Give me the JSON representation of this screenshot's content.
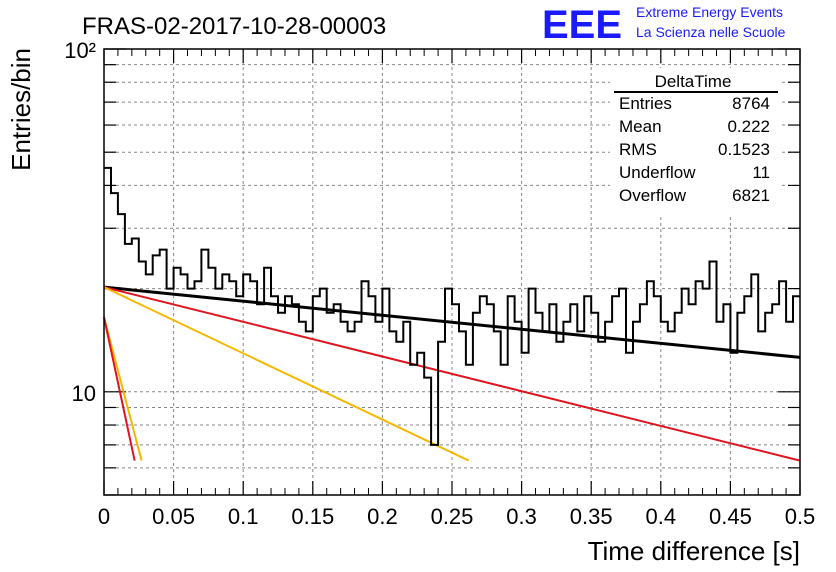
{
  "header": {
    "run_title": "FRAS-02-2017-10-28-00003",
    "logo": "EEE",
    "brand_line1": "Extreme Energy Events",
    "brand_line2": "La Scienza nelle Scuole"
  },
  "colors": {
    "histogram": "#000000",
    "fit_total": "#000000",
    "fit_red": "#e0141e",
    "fit_orange": "#f5b800",
    "logo": "#1a1aff",
    "grid": "#888888"
  },
  "stats": {
    "title": "DeltaTime",
    "rows": [
      {
        "label": "Entries",
        "value": "8764"
      },
      {
        "label": "Mean",
        "value": "0.222"
      },
      {
        "label": "RMS",
        "value": "0.1523"
      },
      {
        "label": "Underflow",
        "value": "11"
      },
      {
        "label": "Overflow",
        "value": "6821"
      }
    ]
  },
  "chart_data": {
    "type": "histogram",
    "xlabel": "Time difference [s]",
    "ylabel": "Entries/bin",
    "xlim": [
      0,
      0.5
    ],
    "ylim": [
      5,
      100
    ],
    "yscale": "log",
    "grid": true,
    "x_ticks": [
      "0",
      "0.05",
      "0.1",
      "0.15",
      "0.2",
      "0.25",
      "0.3",
      "0.35",
      "0.4",
      "0.45",
      "0.5"
    ],
    "y_tick_labels": [
      {
        "value": 10,
        "label": "10"
      },
      {
        "value": 100,
        "label": "10²"
      }
    ],
    "bin_width": 0.005,
    "counts": [
      45,
      38,
      33,
      27,
      28,
      24,
      22,
      25,
      26,
      20,
      23,
      22,
      20,
      21,
      26,
      23,
      20,
      22,
      21,
      19,
      22,
      21,
      18,
      23,
      19,
      17,
      19,
      18,
      16,
      15,
      19,
      20,
      17,
      18,
      16,
      15,
      16,
      21,
      19,
      16,
      20,
      15,
      14,
      16,
      12,
      13,
      11,
      7,
      14,
      20,
      18,
      15,
      12,
      17,
      19,
      18,
      15,
      12,
      19,
      16,
      13,
      20,
      17,
      15,
      18,
      14,
      16,
      18,
      15,
      19,
      17,
      14,
      16,
      19,
      20,
      13,
      16,
      18,
      21,
      19,
      16,
      15,
      17,
      20,
      18,
      21,
      20,
      24,
      16,
      18,
      13,
      17,
      19,
      22,
      15,
      17,
      18,
      21,
      16,
      19
    ],
    "fits": [
      {
        "name": "total",
        "color": "#000000",
        "x": [
          0,
          0.5
        ],
        "y": [
          20.2,
          12.6
        ]
      },
      {
        "name": "red_slow",
        "color": "#e0141e",
        "x": [
          0,
          0.5
        ],
        "y": [
          20.2,
          6.3
        ]
      },
      {
        "name": "orange_mid",
        "color": "#f5b800",
        "x": [
          0,
          0.262
        ],
        "y": [
          20.2,
          6.3
        ]
      },
      {
        "name": "orange_fast",
        "color": "#f5b800",
        "x": [
          0,
          0.027
        ],
        "y": [
          16.5,
          6.3
        ]
      },
      {
        "name": "red_fast",
        "color": "#e0141e",
        "x": [
          0,
          0.022
        ],
        "y": [
          16.5,
          6.3
        ]
      }
    ]
  }
}
